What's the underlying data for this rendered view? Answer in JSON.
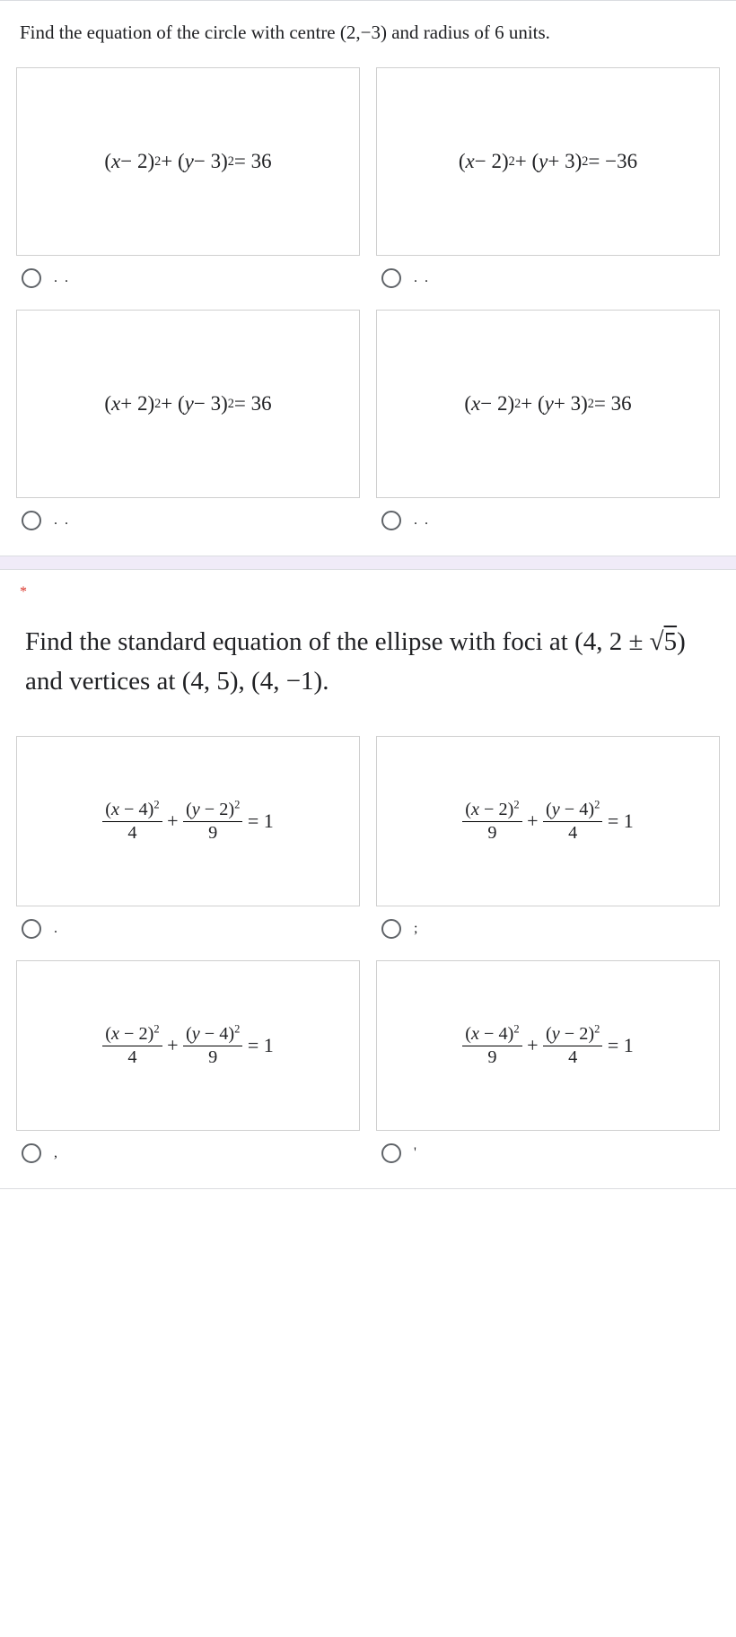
{
  "question1": {
    "text_html": "Find the equation of the circle with centre (2,&minus;3) and radius of 6 units.",
    "options": [
      {
        "html": "(<i>x</i> &minus; 2)<sup>2</sup> + (<i>y</i> &minus; 3)<sup>2</sup> = 36",
        "label": ". ."
      },
      {
        "html": "(<i>x</i> &minus; 2)<sup>2</sup> + (<i>y</i> + 3)<sup>2</sup> = &minus;36",
        "label": ". ."
      },
      {
        "html": "(<i>x</i> + 2)<sup>2</sup> + (<i>y</i> &minus; 3)<sup>2</sup> = 36",
        "label": ". ."
      },
      {
        "html": "(<i>x</i> &minus; 2)<sup>2</sup> + (<i>y</i> + 3)<sup>2</sup> = 36",
        "label": ". ."
      }
    ]
  },
  "question2": {
    "required_marker": "*",
    "text_html": "Find the standard equation of the ellipse with foci at (4, 2 &plusmn; &radic;<span style='text-decoration:overline'>5</span>) and vertices at (4, 5), (4, &minus;1).",
    "options": [
      {
        "num1": "(<i>x</i> &minus; 4)<sup>2</sup>",
        "den1": "4",
        "num2": "(<i>y</i> &minus; 2)<sup>2</sup>",
        "den2": "9",
        "label": "."
      },
      {
        "num1": "(<i>x</i> &minus; 2)<sup>2</sup>",
        "den1": "9",
        "num2": "(<i>y</i> &minus; 4)<sup>2</sup>",
        "den2": "4",
        "label": ";"
      },
      {
        "num1": "(<i>x</i> &minus; 2)<sup>2</sup>",
        "den1": "4",
        "num2": "(<i>y</i> &minus; 4)<sup>2</sup>",
        "den2": "9",
        "label": ","
      },
      {
        "num1": "(<i>x</i> &minus; 4)<sup>2</sup>",
        "den1": "9",
        "num2": "(<i>y</i> &minus; 2)<sup>2</sup>",
        "den2": "4",
        "label": "'"
      }
    ]
  },
  "styling": {
    "border_color": "#cfcfcf",
    "radio_border": "#5f6368",
    "divider_bg": "#f0ebf8",
    "text_color": "#202124",
    "required_color": "#d93025"
  }
}
